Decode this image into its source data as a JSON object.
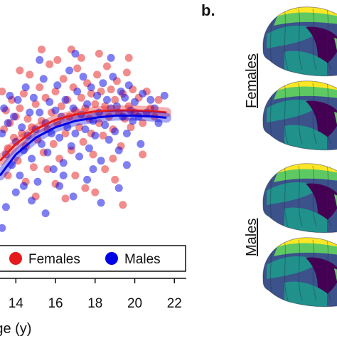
{
  "panel_b": {
    "label": "b."
  },
  "brains": {
    "female_label": "Females",
    "male_label": "Males",
    "palette": [
      "#440154",
      "#3b528b",
      "#21918c",
      "#5ec962",
      "#fde725"
    ]
  },
  "chart_data": {
    "type": "scatter",
    "xlabel": "Age (y)",
    "ylabel": "",
    "xlim": [
      13.2,
      22.6
    ],
    "x_ticks": [
      14,
      16,
      18,
      20,
      22
    ],
    "x_tick_labels": [
      "14",
      "16",
      "18",
      "20",
      "22"
    ],
    "ylim": [
      0,
      1
    ],
    "legend": {
      "placement": "bottom",
      "entries": [
        "Females",
        "Males"
      ]
    },
    "series": [
      {
        "name": "Females",
        "color": "#e41a1c",
        "trend": {
          "x": [
            13.2,
            14.0,
            15.0,
            16.0,
            17.0,
            18.0,
            19.0,
            20.0,
            21.0,
            21.6
          ],
          "y": [
            0.37,
            0.45,
            0.52,
            0.565,
            0.59,
            0.605,
            0.61,
            0.61,
            0.605,
            0.6
          ]
        },
        "points": [
          [
            13.3,
            0.7
          ],
          [
            13.4,
            0.52
          ],
          [
            13.5,
            0.61
          ],
          [
            13.6,
            0.43
          ],
          [
            13.7,
            0.55
          ],
          [
            13.8,
            0.66
          ],
          [
            13.9,
            0.48
          ],
          [
            14.0,
            0.58
          ],
          [
            14.1,
            0.37
          ],
          [
            14.2,
            0.62
          ],
          [
            14.3,
            0.5
          ],
          [
            14.4,
            0.69
          ],
          [
            14.5,
            0.44
          ],
          [
            14.6,
            0.57
          ],
          [
            14.7,
            0.78
          ],
          [
            14.8,
            0.53
          ],
          [
            14.9,
            0.34
          ],
          [
            15.0,
            0.64
          ],
          [
            15.1,
            0.47
          ],
          [
            15.2,
            0.72
          ],
          [
            15.3,
            0.56
          ],
          [
            15.4,
            0.41
          ],
          [
            15.5,
            0.67
          ],
          [
            15.6,
            0.52
          ],
          [
            15.7,
            0.83
          ],
          [
            15.8,
            0.6
          ],
          [
            15.9,
            0.45
          ],
          [
            16.0,
            0.7
          ],
          [
            16.1,
            0.55
          ],
          [
            16.2,
            0.38
          ],
          [
            16.3,
            0.63
          ],
          [
            16.4,
            0.76
          ],
          [
            16.5,
            0.5
          ],
          [
            16.6,
            0.66
          ],
          [
            16.7,
            0.58
          ],
          [
            16.8,
            0.42
          ],
          [
            16.9,
            0.72
          ],
          [
            17.0,
            0.61
          ],
          [
            17.1,
            0.81
          ],
          [
            17.2,
            0.53
          ],
          [
            17.3,
            0.67
          ],
          [
            17.4,
            0.46
          ],
          [
            17.5,
            0.62
          ],
          [
            17.6,
            0.74
          ],
          [
            17.7,
            0.57
          ],
          [
            17.8,
            0.69
          ],
          [
            17.9,
            0.4
          ],
          [
            18.0,
            0.64
          ],
          [
            18.1,
            0.78
          ],
          [
            18.2,
            0.55
          ],
          [
            18.3,
            0.7
          ],
          [
            18.4,
            0.49
          ],
          [
            18.5,
            0.63
          ],
          [
            18.6,
            0.82
          ],
          [
            18.7,
            0.58
          ],
          [
            18.8,
            0.71
          ],
          [
            18.9,
            0.52
          ],
          [
            19.0,
            0.66
          ],
          [
            19.1,
            0.75
          ],
          [
            19.2,
            0.6
          ],
          [
            19.3,
            0.44
          ],
          [
            19.4,
            0.69
          ],
          [
            19.5,
            0.57
          ],
          [
            19.6,
            0.79
          ],
          [
            19.7,
            0.63
          ],
          [
            19.8,
            0.53
          ],
          [
            19.9,
            0.71
          ],
          [
            20.0,
            0.6
          ],
          [
            20.2,
            0.67
          ],
          [
            20.4,
            0.55
          ],
          [
            20.6,
            0.7
          ],
          [
            20.8,
            0.62
          ],
          [
            21.0,
            0.58
          ],
          [
            21.2,
            0.66
          ],
          [
            14.5,
            0.27
          ],
          [
            15.0,
            0.2
          ],
          [
            16.0,
            0.26
          ],
          [
            16.5,
            0.19
          ],
          [
            17.0,
            0.3
          ],
          [
            17.5,
            0.24
          ],
          [
            18.0,
            0.22
          ],
          [
            18.5,
            0.33
          ],
          [
            19.0,
            0.28
          ],
          [
            19.4,
            0.16
          ],
          [
            13.6,
            0.3
          ],
          [
            15.6,
            0.33
          ],
          [
            17.3,
            0.86
          ],
          [
            18.2,
            0.88
          ],
          [
            16.8,
            0.9
          ],
          [
            19.7,
            0.86
          ],
          [
            20.4,
            0.4
          ],
          [
            14.2,
            0.8
          ],
          [
            16.1,
            0.85
          ],
          [
            18.9,
            0.38
          ],
          [
            15.3,
            0.9
          ],
          [
            17.8,
            0.5
          ]
        ]
      },
      {
        "name": "Males",
        "color": "#0000e6",
        "trend": {
          "x": [
            13.2,
            14.0,
            15.0,
            16.0,
            17.0,
            18.0,
            19.0,
            20.0,
            21.0,
            21.6
          ],
          "y": [
            0.3,
            0.4,
            0.48,
            0.53,
            0.56,
            0.575,
            0.585,
            0.585,
            0.58,
            0.575
          ]
        },
        "points": [
          [
            13.3,
            0.5
          ],
          [
            13.4,
            0.62
          ],
          [
            13.5,
            0.4
          ],
          [
            13.6,
            0.55
          ],
          [
            13.7,
            0.68
          ],
          [
            13.8,
            0.35
          ],
          [
            13.9,
            0.58
          ],
          [
            14.0,
            0.46
          ],
          [
            14.1,
            0.66
          ],
          [
            14.2,
            0.3
          ],
          [
            14.3,
            0.53
          ],
          [
            14.4,
            0.42
          ],
          [
            14.5,
            0.72
          ],
          [
            14.6,
            0.49
          ],
          [
            14.7,
            0.6
          ],
          [
            14.8,
            0.38
          ],
          [
            14.9,
            0.67
          ],
          [
            15.0,
            0.52
          ],
          [
            15.1,
            0.27
          ],
          [
            15.2,
            0.6
          ],
          [
            15.3,
            0.45
          ],
          [
            15.4,
            0.76
          ],
          [
            15.5,
            0.55
          ],
          [
            15.6,
            0.41
          ],
          [
            15.7,
            0.65
          ],
          [
            15.8,
            0.5
          ],
          [
            15.9,
            0.33
          ],
          [
            16.0,
            0.61
          ],
          [
            16.1,
            0.73
          ],
          [
            16.2,
            0.48
          ],
          [
            16.3,
            0.58
          ],
          [
            16.4,
            0.36
          ],
          [
            16.5,
            0.66
          ],
          [
            16.6,
            0.53
          ],
          [
            16.7,
            0.8
          ],
          [
            16.8,
            0.44
          ],
          [
            16.9,
            0.62
          ],
          [
            17.0,
            0.5
          ],
          [
            17.1,
            0.7
          ],
          [
            17.2,
            0.39
          ],
          [
            17.3,
            0.59
          ],
          [
            17.4,
            0.77
          ],
          [
            17.5,
            0.52
          ],
          [
            17.6,
            0.64
          ],
          [
            17.7,
            0.43
          ],
          [
            17.8,
            0.72
          ],
          [
            17.9,
            0.56
          ],
          [
            18.0,
            0.49
          ],
          [
            18.1,
            0.68
          ],
          [
            18.2,
            0.6
          ],
          [
            18.3,
            0.37
          ],
          [
            18.4,
            0.74
          ],
          [
            18.5,
            0.54
          ],
          [
            18.6,
            0.66
          ],
          [
            18.7,
            0.47
          ],
          [
            18.8,
            0.62
          ],
          [
            18.9,
            0.77
          ],
          [
            19.0,
            0.51
          ],
          [
            19.1,
            0.63
          ],
          [
            19.2,
            0.42
          ],
          [
            19.3,
            0.7
          ],
          [
            19.4,
            0.58
          ],
          [
            19.5,
            0.67
          ],
          [
            19.6,
            0.5
          ],
          [
            19.7,
            0.73
          ],
          [
            19.8,
            0.61
          ],
          [
            19.9,
            0.56
          ],
          [
            20.0,
            0.65
          ],
          [
            20.2,
            0.58
          ],
          [
            20.4,
            0.69
          ],
          [
            20.6,
            0.6
          ],
          [
            20.8,
            0.66
          ],
          [
            21.0,
            0.62
          ],
          [
            21.2,
            0.55
          ],
          [
            21.5,
            0.68
          ],
          [
            13.5,
            0.15
          ],
          [
            14.0,
            0.22
          ],
          [
            14.8,
            0.18
          ],
          [
            15.5,
            0.12
          ],
          [
            16.2,
            0.25
          ],
          [
            16.9,
            0.2
          ],
          [
            17.6,
            0.28
          ],
          [
            18.3,
            0.17
          ],
          [
            19.2,
            0.24
          ],
          [
            15.2,
            0.85
          ],
          [
            17.0,
            0.88
          ],
          [
            18.8,
            0.86
          ],
          [
            16.4,
            0.3
          ],
          [
            14.4,
            0.25
          ],
          [
            13.3,
            0.05
          ],
          [
            20.3,
            0.45
          ],
          [
            19.6,
            0.35
          ],
          [
            17.9,
            0.33
          ]
        ]
      }
    ]
  }
}
